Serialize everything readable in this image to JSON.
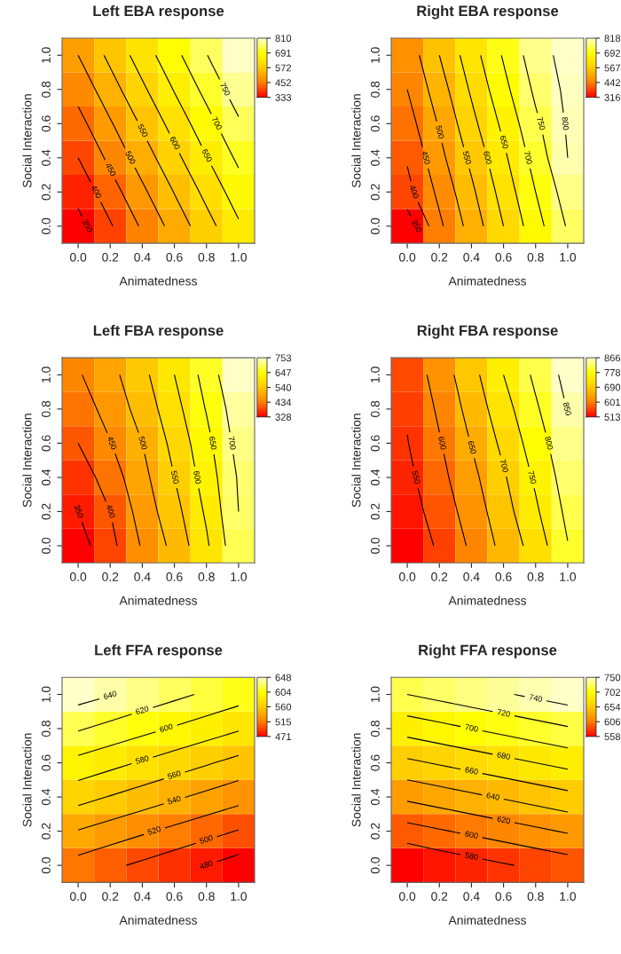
{
  "chart_data": [
    {
      "type": "heatmap",
      "title": "Left EBA response",
      "xlabel": "Animatedness",
      "ylabel": "Social Interaction",
      "categories": [
        "0.0",
        "0.2",
        "0.4",
        "0.6",
        "0.8",
        "1.0"
      ],
      "y_categories": [
        "1.0",
        "0.8",
        "0.6",
        "0.4",
        "0.2",
        "0.0"
      ],
      "cells": [
        [
          500,
          562,
          624,
          686,
          748,
          810
        ],
        [
          467,
          529,
          591,
          653,
          715,
          777
        ],
        [
          433,
          495,
          557,
          619,
          681,
          743
        ],
        [
          400,
          462,
          524,
          586,
          648,
          710
        ],
        [
          366,
          428,
          490,
          552,
          614,
          676
        ],
        [
          333,
          395,
          457,
          519,
          581,
          643
        ]
      ],
      "clim": [
        333,
        810
      ],
      "cticks": [
        333,
        452,
        572,
        691,
        810
      ],
      "annotations": [
        "350",
        "400",
        "450",
        "500",
        "550",
        "600",
        "650",
        "700",
        "750"
      ]
    },
    {
      "type": "heatmap",
      "title": "Right EBA response",
      "xlabel": "Animatedness",
      "ylabel": "Social Interaction",
      "categories": [
        "0.0",
        "0.2",
        "0.4",
        "0.6",
        "0.8",
        "1.0"
      ],
      "y_categories": [
        "1.0",
        "0.8",
        "0.6",
        "0.4",
        "0.2",
        "0.0"
      ],
      "cells": [
        [
          470,
          550,
          628,
          705,
          778,
          818
        ],
        [
          450,
          527,
          607,
          685,
          760,
          812
        ],
        [
          428,
          505,
          585,
          662,
          740,
          806
        ],
        [
          405,
          485,
          562,
          640,
          720,
          800
        ],
        [
          385,
          462,
          540,
          620,
          700,
          775
        ],
        [
          316,
          440,
          520,
          600,
          680,
          755
        ]
      ],
      "clim": [
        316,
        818
      ],
      "cticks": [
        316,
        442,
        567,
        692,
        818
      ],
      "annotations": [
        "350",
        "400",
        "450",
        "500",
        "550",
        "600",
        "650",
        "700",
        "750",
        "800"
      ]
    },
    {
      "type": "heatmap",
      "title": "Left FBA response",
      "xlabel": "Animatedness",
      "ylabel": "Social Interaction",
      "categories": [
        "0.0",
        "0.2",
        "0.4",
        "0.6",
        "0.8",
        "1.0"
      ],
      "y_categories": [
        "1.0",
        "0.8",
        "0.6",
        "0.4",
        "0.2",
        "0.0"
      ],
      "cells": [
        [
          445,
          485,
          536,
          600,
          668,
          753
        ],
        [
          425,
          468,
          520,
          582,
          653,
          730
        ],
        [
          400,
          448,
          500,
          565,
          635,
          718
        ],
        [
          370,
          425,
          485,
          550,
          622,
          705
        ],
        [
          350,
          400,
          472,
          532,
          608,
          700
        ],
        [
          328,
          385,
          455,
          515,
          592,
          690
        ]
      ],
      "clim": [
        328,
        753
      ],
      "cticks": [
        328,
        434,
        540,
        647,
        753
      ],
      "annotations": [
        "350",
        "400",
        "450",
        "500",
        "550",
        "600",
        "650",
        "700"
      ]
    },
    {
      "type": "heatmap",
      "title": "Right FBA response",
      "xlabel": "Animatedness",
      "ylabel": "Social Interaction",
      "categories": [
        "0.0",
        "0.2",
        "0.4",
        "0.6",
        "0.8",
        "1.0"
      ],
      "y_categories": [
        "1.0",
        "0.8",
        "0.6",
        "0.4",
        "0.2",
        "0.0"
      ],
      "cells": [
        [
          565,
          622,
          683,
          750,
          810,
          866
        ],
        [
          556,
          608,
          668,
          730,
          793,
          852
        ],
        [
          548,
          596,
          652,
          712,
          775,
          838
        ],
        [
          538,
          585,
          636,
          694,
          758,
          825
        ],
        [
          527,
          572,
          622,
          680,
          742,
          812
        ],
        [
          513,
          558,
          608,
          665,
          722,
          798
        ]
      ],
      "clim": [
        513,
        866
      ],
      "cticks": [
        513,
        601,
        690,
        778,
        866
      ],
      "annotations": [
        "550",
        "600",
        "650",
        "700",
        "750",
        "800",
        "850"
      ]
    },
    {
      "type": "heatmap",
      "title": "Left FFA response",
      "xlabel": "Animatedness",
      "ylabel": "Social Interaction",
      "categories": [
        "0.0",
        "0.2",
        "0.4",
        "0.6",
        "0.8",
        "1.0"
      ],
      "y_categories": [
        "1.0",
        "0.8",
        "0.6",
        "0.4",
        "0.2",
        "0.0"
      ],
      "cells": [
        [
          648,
          641,
          633,
          625,
          617,
          609
        ],
        [
          622,
          614,
          606,
          598,
          590,
          582
        ],
        [
          594,
          586,
          578,
          570,
          562,
          554
        ],
        [
          567,
          559,
          551,
          543,
          535,
          527
        ],
        [
          539,
          531,
          523,
          515,
          507,
          499
        ],
        [
          512,
          504,
          496,
          488,
          480,
          471
        ]
      ],
      "clim": [
        471,
        648
      ],
      "cticks": [
        471,
        515,
        560,
        604,
        648
      ],
      "annotations": [
        "480",
        "500",
        "520",
        "540",
        "560",
        "580",
        "600",
        "620",
        "640"
      ]
    },
    {
      "type": "heatmap",
      "title": "Right FFA response",
      "xlabel": "Animatedness",
      "ylabel": "Social Interaction",
      "categories": [
        "0.0",
        "0.2",
        "0.4",
        "0.6",
        "0.8",
        "1.0"
      ],
      "y_categories": [
        "1.0",
        "0.8",
        "0.6",
        "0.4",
        "0.2",
        "0.0"
      ],
      "cells": [
        [
          720,
          726,
          732,
          738,
          744,
          750
        ],
        [
          688,
          694,
          700,
          706,
          712,
          718
        ],
        [
          656,
          662,
          668,
          674,
          680,
          686
        ],
        [
          624,
          630,
          636,
          642,
          648,
          654
        ],
        [
          592,
          598,
          604,
          610,
          616,
          622
        ],
        [
          558,
          566,
          572,
          578,
          584,
          590
        ]
      ],
      "clim": [
        558,
        750
      ],
      "cticks": [
        558,
        606,
        654,
        702,
        750
      ],
      "annotations": [
        "580",
        "600",
        "620",
        "640",
        "660",
        "680",
        "700",
        "720",
        "740"
      ]
    }
  ]
}
